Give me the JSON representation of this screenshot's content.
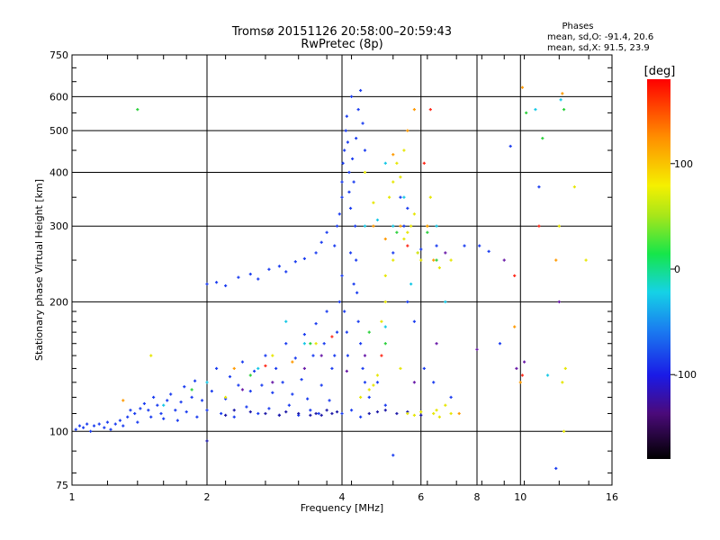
{
  "chart_data": {
    "type": "scatter",
    "title": "Tromsø 20151126 20:58:00–20:59:43",
    "subtitle": "RwPretec (8p)",
    "xlabel": "Frequency [MHz]",
    "ylabel": "Stationary phase Virtual Height [km]",
    "x_scale": "log2",
    "y_scale": "log",
    "xlim": [
      1,
      16
    ],
    "ylim": [
      75,
      750
    ],
    "x_ticks": [
      1,
      2,
      4,
      6,
      8,
      10,
      16
    ],
    "x_tick_labels": [
      "1",
      "2",
      "4",
      "6",
      "8",
      "10",
      "16"
    ],
    "y_ticks": [
      75,
      100,
      200,
      300,
      400,
      500,
      600,
      750
    ],
    "y_tick_labels": [
      "75",
      "100",
      "200",
      "300",
      "400",
      "500",
      "600",
      "750"
    ],
    "grid": true,
    "info": {
      "heading": "Phases",
      "line1": "mean, sd,O: -91.4, 20.6",
      "line2": "mean, sd,X:  91.5, 23.9"
    },
    "colorbar": {
      "label": "[deg]",
      "range": [
        -180,
        180
      ],
      "ticks": [
        100,
        0,
        -100
      ],
      "tick_labels": [
        "100",
        "0",
        "-100"
      ],
      "colormap": "rainbow"
    },
    "colors": {
      "blue": "#1a3cf0",
      "navy": "#1e1aa8",
      "purple": "#6a1aa8",
      "cyan": "#15c8e6",
      "green": "#2ad03a",
      "yellow": "#e6e600",
      "orange": "#ff9a00",
      "red": "#ff2a1a"
    },
    "series": [
      {
        "phase": -100,
        "color": "blue",
        "points": [
          [
            1.02,
            101
          ],
          [
            1.04,
            103
          ],
          [
            1.06,
            102
          ],
          [
            1.08,
            104
          ],
          [
            1.1,
            100
          ],
          [
            1.12,
            103
          ],
          [
            1.15,
            104
          ],
          [
            1.18,
            102
          ],
          [
            1.2,
            105
          ],
          [
            1.22,
            101
          ],
          [
            1.25,
            104
          ],
          [
            1.28,
            106
          ],
          [
            1.3,
            103
          ],
          [
            1.33,
            108
          ],
          [
            1.35,
            112
          ],
          [
            1.38,
            110
          ],
          [
            1.4,
            105
          ],
          [
            1.42,
            113
          ],
          [
            1.45,
            116
          ],
          [
            1.48,
            112
          ],
          [
            1.5,
            108
          ],
          [
            1.52,
            120
          ],
          [
            1.55,
            115
          ],
          [
            1.58,
            110
          ],
          [
            1.6,
            107
          ],
          [
            1.63,
            118
          ],
          [
            1.66,
            122
          ],
          [
            1.7,
            112
          ],
          [
            1.72,
            106
          ],
          [
            1.75,
            117
          ],
          [
            1.78,
            127
          ],
          [
            1.8,
            111
          ],
          [
            1.85,
            120
          ],
          [
            1.88,
            131
          ],
          [
            1.9,
            108
          ],
          [
            1.95,
            118
          ],
          [
            2.0,
            112
          ],
          [
            2.05,
            124
          ],
          [
            2.1,
            140
          ],
          [
            2.15,
            110
          ],
          [
            2.2,
            119
          ],
          [
            2.25,
            134
          ],
          [
            2.3,
            108
          ],
          [
            2.35,
            128
          ],
          [
            2.4,
            145
          ],
          [
            2.45,
            114
          ],
          [
            2.5,
            124
          ],
          [
            2.55,
            138
          ],
          [
            2.6,
            110
          ],
          [
            2.65,
            128
          ],
          [
            2.7,
            150
          ],
          [
            2.75,
            113
          ],
          [
            2.8,
            123
          ],
          [
            2.85,
            140
          ],
          [
            2.9,
            109
          ],
          [
            2.95,
            130
          ],
          [
            3.0,
            160
          ],
          [
            3.05,
            115
          ],
          [
            3.1,
            122
          ],
          [
            3.15,
            148
          ],
          [
            3.2,
            109
          ],
          [
            3.25,
            132
          ],
          [
            3.3,
            168
          ],
          [
            3.35,
            119
          ],
          [
            3.4,
            112
          ],
          [
            3.45,
            150
          ],
          [
            3.5,
            178
          ],
          [
            3.55,
            110
          ],
          [
            3.6,
            128
          ],
          [
            3.65,
            160
          ],
          [
            3.7,
            190
          ],
          [
            3.75,
            118
          ],
          [
            3.8,
            140
          ],
          [
            3.85,
            270
          ],
          [
            3.9,
            300
          ],
          [
            3.95,
            320
          ],
          [
            4.0,
            350
          ],
          [
            4.0,
            380
          ],
          [
            4.02,
            420
          ],
          [
            4.05,
            450
          ],
          [
            4.08,
            500
          ],
          [
            4.1,
            540
          ],
          [
            4.12,
            470
          ],
          [
            4.15,
            400
          ],
          [
            4.15,
            360
          ],
          [
            4.18,
            330
          ],
          [
            4.2,
            600
          ],
          [
            4.22,
            430
          ],
          [
            4.25,
            380
          ],
          [
            4.28,
            300
          ],
          [
            4.3,
            250
          ],
          [
            4.32,
            210
          ],
          [
            4.35,
            180
          ],
          [
            4.4,
            160
          ],
          [
            4.45,
            140
          ],
          [
            4.5,
            130
          ],
          [
            4.0,
            230
          ],
          [
            4.05,
            190
          ],
          [
            4.1,
            170
          ],
          [
            4.12,
            150
          ],
          [
            4.18,
            260
          ],
          [
            4.25,
            220
          ],
          [
            4.3,
            480
          ],
          [
            4.35,
            560
          ],
          [
            4.4,
            620
          ],
          [
            3.95,
            200
          ],
          [
            3.9,
            170
          ],
          [
            3.85,
            150
          ],
          [
            4.45,
            520
          ],
          [
            4.5,
            450
          ],
          [
            2.0,
            220
          ],
          [
            2.1,
            222
          ],
          [
            2.2,
            218
          ],
          [
            2.35,
            228
          ],
          [
            2.5,
            232
          ],
          [
            2.6,
            226
          ],
          [
            2.75,
            238
          ],
          [
            2.9,
            242
          ],
          [
            3.0,
            235
          ],
          [
            3.15,
            248
          ],
          [
            3.3,
            252
          ],
          [
            3.5,
            260
          ],
          [
            3.6,
            275
          ],
          [
            3.7,
            290
          ],
          [
            5.5,
            300
          ],
          [
            5.6,
            330
          ],
          [
            6.0,
            265
          ],
          [
            6.5,
            270
          ],
          [
            7.5,
            270
          ],
          [
            8.1,
            270
          ],
          [
            8.5,
            262
          ],
          [
            9.5,
            460
          ],
          [
            4.0,
            110
          ],
          [
            4.2,
            112
          ],
          [
            4.4,
            108
          ],
          [
            4.6,
            120
          ],
          [
            4.8,
            130
          ],
          [
            5.0,
            115
          ],
          [
            5.2,
            260
          ],
          [
            5.4,
            350
          ],
          [
            5.6,
            200
          ],
          [
            5.8,
            180
          ],
          [
            6.1,
            140
          ],
          [
            6.4,
            130
          ],
          [
            7.0,
            120
          ],
          [
            9.0,
            160
          ],
          [
            11.0,
            370
          ],
          [
            12.0,
            82
          ],
          [
            5.2,
            88
          ]
        ]
      },
      {
        "phase": -120,
        "color": "navy",
        "points": [
          [
            3.4,
            109
          ],
          [
            3.5,
            110
          ],
          [
            3.6,
            109
          ],
          [
            3.7,
            112
          ],
          [
            3.8,
            110
          ],
          [
            3.9,
            111
          ],
          [
            3.2,
            110
          ],
          [
            3.0,
            111
          ],
          [
            2.9,
            109
          ],
          [
            2.7,
            110
          ],
          [
            2.5,
            111
          ],
          [
            2.3,
            112
          ],
          [
            2.2,
            109
          ],
          [
            4.6,
            110
          ],
          [
            4.8,
            111
          ],
          [
            5.0,
            112
          ],
          [
            5.3,
            110
          ],
          [
            5.6,
            111
          ],
          [
            6.0,
            109
          ],
          [
            2.0,
            95
          ]
        ]
      },
      {
        "phase": -150,
        "color": "purple",
        "points": [
          [
            2.4,
            125
          ],
          [
            2.8,
            130
          ],
          [
            3.3,
            140
          ],
          [
            3.6,
            150
          ],
          [
            4.1,
            138
          ],
          [
            4.5,
            150
          ],
          [
            5.8,
            130
          ],
          [
            6.5,
            160
          ],
          [
            8.0,
            155
          ],
          [
            9.8,
            140
          ],
          [
            10.2,
            145
          ],
          [
            9.2,
            250
          ],
          [
            6.8,
            260
          ],
          [
            12.2,
            200
          ]
        ]
      },
      {
        "phase": -40,
        "color": "cyan",
        "points": [
          [
            1.6,
            115
          ],
          [
            2.0,
            130
          ],
          [
            2.6,
            140
          ],
          [
            3.0,
            180
          ],
          [
            3.3,
            160
          ],
          [
            4.5,
            300
          ],
          [
            4.8,
            310
          ],
          [
            5.0,
            420
          ],
          [
            5.2,
            300
          ],
          [
            5.5,
            350
          ],
          [
            5.7,
            220
          ],
          [
            5.9,
            260
          ],
          [
            6.5,
            300
          ],
          [
            6.8,
            200
          ],
          [
            10.8,
            560
          ],
          [
            12.3,
            590
          ],
          [
            11.5,
            135
          ],
          [
            5.0,
            175
          ]
        ]
      },
      {
        "phase": 40,
        "color": "green",
        "points": [
          [
            1.4,
            560
          ],
          [
            1.85,
            125
          ],
          [
            2.5,
            135
          ],
          [
            3.4,
            160
          ],
          [
            5.0,
            160
          ],
          [
            5.3,
            290
          ],
          [
            6.2,
            290
          ],
          [
            6.5,
            250
          ],
          [
            12.5,
            560
          ],
          [
            11.2,
            480
          ],
          [
            10.3,
            550
          ],
          [
            4.6,
            170
          ]
        ]
      },
      {
        "phase": 100,
        "color": "yellow",
        "points": [
          [
            1.5,
            150
          ],
          [
            2.2,
            120
          ],
          [
            2.8,
            150
          ],
          [
            3.5,
            160
          ],
          [
            4.4,
            120
          ],
          [
            4.6,
            125
          ],
          [
            4.8,
            135
          ],
          [
            4.9,
            180
          ],
          [
            5.0,
            200
          ],
          [
            5.1,
            350
          ],
          [
            5.2,
            380
          ],
          [
            5.4,
            390
          ],
          [
            5.5,
            280
          ],
          [
            5.6,
            290
          ],
          [
            5.7,
            300
          ],
          [
            5.8,
            320
          ],
          [
            5.9,
            260
          ],
          [
            6.0,
            250
          ],
          [
            6.2,
            300
          ],
          [
            6.4,
            110
          ],
          [
            6.5,
            112
          ],
          [
            6.6,
            108
          ],
          [
            6.8,
            115
          ],
          [
            7.0,
            110
          ],
          [
            6.3,
            350
          ],
          [
            6.6,
            240
          ],
          [
            7.0,
            250
          ],
          [
            5.6,
            110
          ],
          [
            5.8,
            109
          ],
          [
            6.0,
            111
          ],
          [
            5.3,
            420
          ],
          [
            5.5,
            450
          ],
          [
            4.7,
            340
          ],
          [
            4.5,
            400
          ],
          [
            12.5,
            100
          ],
          [
            12.4,
            130
          ],
          [
            12.6,
            140
          ],
          [
            12.2,
            300
          ],
          [
            13.2,
            370
          ],
          [
            14.0,
            250
          ],
          [
            5.0,
            230
          ],
          [
            5.2,
            250
          ],
          [
            5.4,
            140
          ],
          [
            4.7,
            128
          ]
        ]
      },
      {
        "phase": 150,
        "color": "orange",
        "points": [
          [
            1.3,
            118
          ],
          [
            2.3,
            140
          ],
          [
            3.1,
            145
          ],
          [
            4.7,
            300
          ],
          [
            5.0,
            280
          ],
          [
            5.2,
            440
          ],
          [
            5.4,
            300
          ],
          [
            5.6,
            500
          ],
          [
            5.8,
            560
          ],
          [
            6.2,
            300
          ],
          [
            6.4,
            250
          ],
          [
            7.3,
            110
          ],
          [
            9.7,
            175
          ],
          [
            10.0,
            130
          ],
          [
            12.4,
            610
          ],
          [
            10.1,
            630
          ],
          [
            12.0,
            250
          ]
        ]
      },
      {
        "phase": 170,
        "color": "red",
        "points": [
          [
            2.7,
            142
          ],
          [
            3.8,
            166
          ],
          [
            4.9,
            150
          ],
          [
            5.6,
            270
          ],
          [
            6.1,
            420
          ],
          [
            6.3,
            560
          ],
          [
            9.7,
            230
          ],
          [
            10.1,
            135
          ],
          [
            11.0,
            300
          ]
        ]
      }
    ]
  }
}
